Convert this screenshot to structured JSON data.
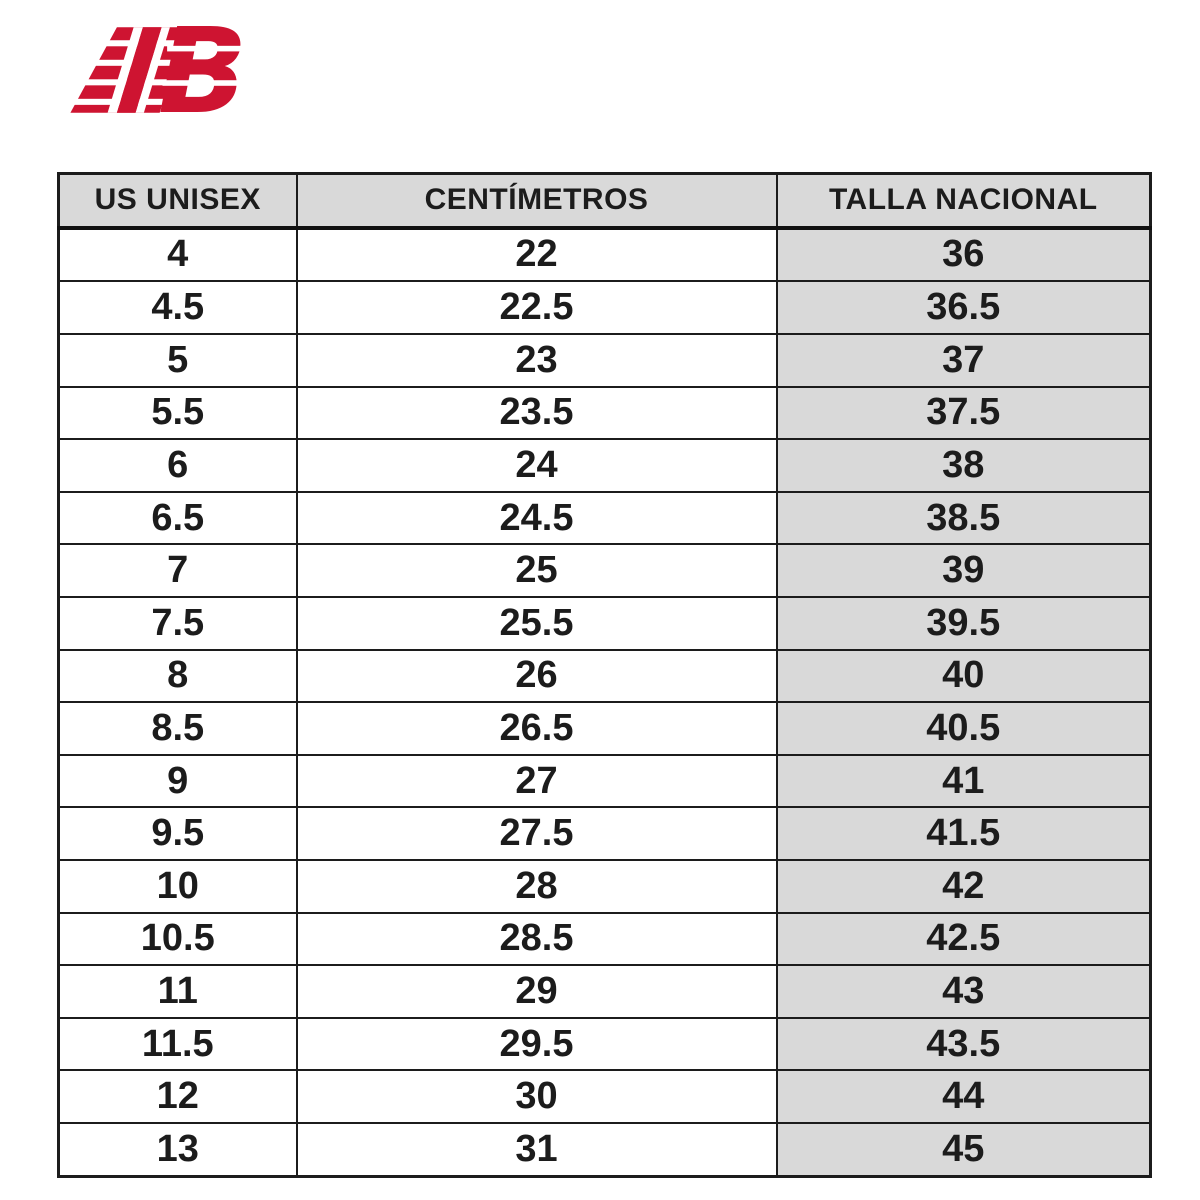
{
  "logo": {
    "icon": "new-balance-nb-logo",
    "brand": "New Balance",
    "color": "#ce1431"
  },
  "size_chart": {
    "columns": [
      "US UNISEX",
      "CENTÍMETROS",
      "TALLA NACIONAL"
    ],
    "rows": [
      [
        "4",
        "22",
        "36"
      ],
      [
        "4.5",
        "22.5",
        "36.5"
      ],
      [
        "5",
        "23",
        "37"
      ],
      [
        "5.5",
        "23.5",
        "37.5"
      ],
      [
        "6",
        "24",
        "38"
      ],
      [
        "6.5",
        "24.5",
        "38.5"
      ],
      [
        "7",
        "25",
        "39"
      ],
      [
        "7.5",
        "25.5",
        "39.5"
      ],
      [
        "8",
        "26",
        "40"
      ],
      [
        "8.5",
        "26.5",
        "40.5"
      ],
      [
        "9",
        "27",
        "41"
      ],
      [
        "9.5",
        "27.5",
        "41.5"
      ],
      [
        "10",
        "28",
        "42"
      ],
      [
        "10.5",
        "28.5",
        "42.5"
      ],
      [
        "11",
        "29",
        "43"
      ],
      [
        "11.5",
        "29.5",
        "43.5"
      ],
      [
        "12",
        "30",
        "44"
      ],
      [
        "13",
        "31",
        "45"
      ]
    ],
    "colors": {
      "header_bg": "#d9d9d9",
      "highlight_col_bg": "#d9d9d9",
      "border": "#1c1c1c"
    }
  },
  "chart_data": {
    "type": "table",
    "title": "New Balance size conversion chart",
    "columns": [
      "US UNISEX",
      "CENTÍMETROS",
      "TALLA NACIONAL"
    ],
    "us_unisex": [
      4,
      4.5,
      5,
      5.5,
      6,
      6.5,
      7,
      7.5,
      8,
      8.5,
      9,
      9.5,
      10,
      10.5,
      11,
      11.5,
      12,
      13
    ],
    "centimetros": [
      22,
      22.5,
      23,
      23.5,
      24,
      24.5,
      25,
      25.5,
      26,
      26.5,
      27,
      27.5,
      28,
      28.5,
      29,
      29.5,
      30,
      31
    ],
    "talla_nacional": [
      36,
      36.5,
      37,
      37.5,
      38,
      38.5,
      39,
      39.5,
      40,
      40.5,
      41,
      41.5,
      42,
      42.5,
      43,
      43.5,
      44,
      45
    ]
  }
}
